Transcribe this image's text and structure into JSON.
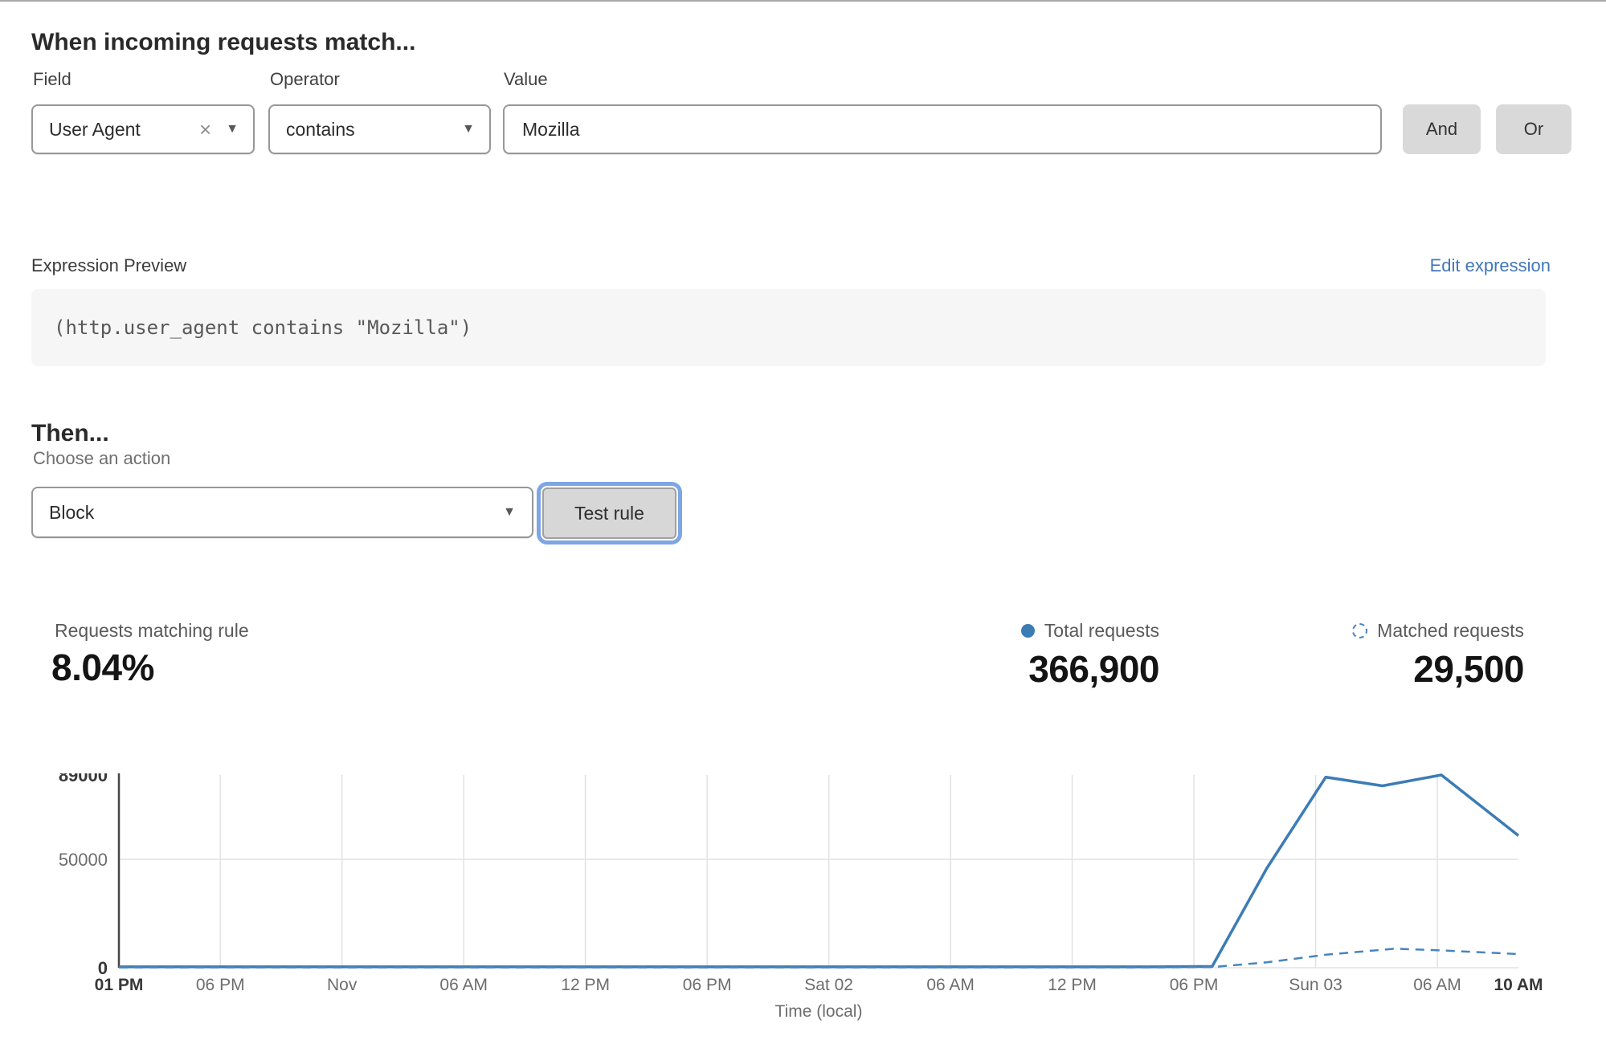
{
  "form": {
    "heading": "When incoming requests match...",
    "field": {
      "label": "Field",
      "value": "User Agent",
      "clear_icon": "×",
      "chevron": "▼"
    },
    "operator": {
      "label": "Operator",
      "value": "contains",
      "chevron": "▼"
    },
    "value": {
      "label": "Value",
      "value": "Mozilla"
    },
    "and_button": "And",
    "or_button": "Or"
  },
  "expression": {
    "label": "Expression Preview",
    "edit_link": "Edit expression",
    "link_color": "#4177b8",
    "code": "(http.user_agent contains \"Mozilla\")"
  },
  "action": {
    "heading": "Then...",
    "label": "Choose an action",
    "selected": "Block",
    "chevron": "▼",
    "test_button": "Test rule"
  },
  "stats": {
    "matching": {
      "label": "Requests matching rule",
      "value": "8.04%"
    },
    "total": {
      "label": "Total requests",
      "value": "366,900",
      "marker_color": "#3c7cb5"
    },
    "matched": {
      "label": "Matched requests",
      "value": "29,500",
      "marker_color": "#4884bd"
    }
  },
  "chart_data": {
    "type": "line",
    "title": "",
    "xlabel": "Time (local)",
    "ylabel": "",
    "ylim": [
      0,
      89000
    ],
    "grid": true,
    "legend_position": "top-right",
    "yticks": [
      {
        "value": 0,
        "label": "0",
        "bold": true
      },
      {
        "value": 50000,
        "label": "50000",
        "bold": false
      },
      {
        "value": 89000,
        "label": "89000",
        "bold": true
      }
    ],
    "xticks": [
      {
        "hour": 0,
        "label": "01 PM",
        "bold": true
      },
      {
        "hour": 5,
        "label": "06 PM",
        "bold": false
      },
      {
        "hour": 11,
        "label": "Nov",
        "bold": false
      },
      {
        "hour": 17,
        "label": "06 AM",
        "bold": false
      },
      {
        "hour": 23,
        "label": "12 PM",
        "bold": false
      },
      {
        "hour": 29,
        "label": "06 PM",
        "bold": false
      },
      {
        "hour": 35,
        "label": "Sat 02",
        "bold": false
      },
      {
        "hour": 41,
        "label": "06 AM",
        "bold": false
      },
      {
        "hour": 47,
        "label": "12 PM",
        "bold": false
      },
      {
        "hour": 53,
        "label": "06 PM",
        "bold": false
      },
      {
        "hour": 59,
        "label": "Sun 03",
        "bold": false
      },
      {
        "hour": 65,
        "label": "06 AM",
        "bold": false
      },
      {
        "hour": 69,
        "label": "10 AM",
        "bold": true
      }
    ],
    "series": [
      {
        "name": "Total requests",
        "style": "solid",
        "color": "#3c7cb5",
        "points": [
          [
            0,
            400
          ],
          [
            5,
            400
          ],
          [
            11,
            400
          ],
          [
            17,
            400
          ],
          [
            23,
            400
          ],
          [
            29,
            400
          ],
          [
            35,
            400
          ],
          [
            41,
            400
          ],
          [
            47,
            400
          ],
          [
            51,
            400
          ],
          [
            53.9,
            600
          ],
          [
            56.6,
            46000
          ],
          [
            59.5,
            88000
          ],
          [
            62.3,
            84000
          ],
          [
            65.2,
            89000
          ],
          [
            69,
            61000
          ]
        ]
      },
      {
        "name": "Matched requests",
        "style": "dashed",
        "color": "#4884bd",
        "points": [
          [
            0,
            150
          ],
          [
            5,
            150
          ],
          [
            11,
            150
          ],
          [
            17,
            150
          ],
          [
            23,
            150
          ],
          [
            29,
            150
          ],
          [
            35,
            150
          ],
          [
            41,
            150
          ],
          [
            47,
            150
          ],
          [
            51,
            150
          ],
          [
            53.9,
            300
          ],
          [
            56.6,
            2500
          ],
          [
            59.5,
            6000
          ],
          [
            62.9,
            8800
          ],
          [
            65.2,
            8000
          ],
          [
            69,
            6300
          ]
        ]
      }
    ]
  }
}
